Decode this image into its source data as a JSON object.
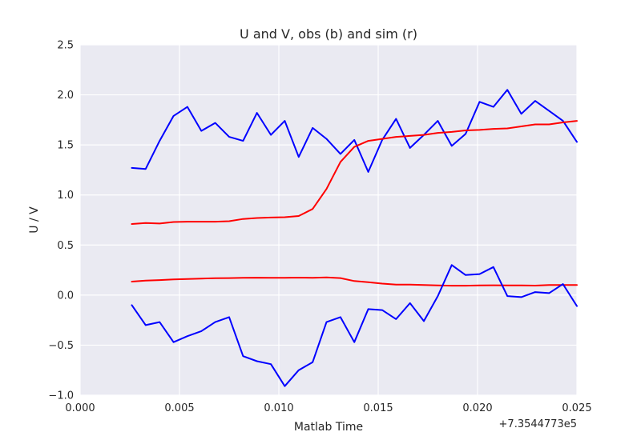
{
  "chart_data": {
    "type": "line",
    "title": "U and V, obs (b) and sim (r)",
    "xlabel": "Matlab Time",
    "ylabel": "U / V",
    "x_offset_label": "+7.3544773e5",
    "xlim": [
      0.0,
      0.025
    ],
    "ylim": [
      -1.0,
      2.5
    ],
    "xticks": [
      0.0,
      0.005,
      0.01,
      0.015,
      0.02,
      0.025
    ],
    "xtick_labels": [
      "0.000",
      "0.005",
      "0.010",
      "0.015",
      "0.020",
      "0.025"
    ],
    "yticks": [
      -1.0,
      -0.5,
      0.0,
      0.5,
      1.0,
      1.5,
      2.0,
      2.5
    ],
    "ytick_labels": [
      "−1.0",
      "−0.5",
      "0.0",
      "0.5",
      "1.0",
      "1.5",
      "2.0",
      "2.5"
    ],
    "grid": true,
    "colors": {
      "background": "#eaeaf2",
      "grid": "#ffffff",
      "obs": "#0000ff",
      "sim": "#ff0000"
    },
    "series": [
      {
        "color": "#0000ff",
        "x": [
          0.0026,
          0.0033,
          0.004,
          0.0047,
          0.0054,
          0.0061,
          0.0068,
          0.0075,
          0.0082,
          0.0089,
          0.0096,
          0.0103,
          0.011,
          0.0117,
          0.0124,
          0.0131,
          0.0138,
          0.0145,
          0.0152,
          0.0159,
          0.0166,
          0.0173,
          0.018,
          0.0187,
          0.0194,
          0.0201,
          0.0208,
          0.0215,
          0.0222,
          0.0229,
          0.0236,
          0.0243,
          0.025
        ],
        "y": [
          1.27,
          1.26,
          1.54,
          1.79,
          1.88,
          1.64,
          1.72,
          1.58,
          1.54,
          1.82,
          1.6,
          1.74,
          1.38,
          1.67,
          1.56,
          1.41,
          1.55,
          1.23,
          1.55,
          1.76,
          1.47,
          1.6,
          1.74,
          1.49,
          1.61,
          1.93,
          1.88,
          2.05,
          1.81,
          1.94,
          1.84,
          1.74,
          1.53
        ]
      },
      {
        "color": "#ff0000",
        "x": [
          0.0026,
          0.0033,
          0.004,
          0.0047,
          0.0054,
          0.0061,
          0.0068,
          0.0075,
          0.0082,
          0.0089,
          0.0096,
          0.0103,
          0.011,
          0.0117,
          0.0124,
          0.0131,
          0.0138,
          0.0145,
          0.0152,
          0.0159,
          0.0166,
          0.0173,
          0.018,
          0.0187,
          0.0194,
          0.0201,
          0.0208,
          0.0215,
          0.0222,
          0.0229,
          0.0236,
          0.0243,
          0.025
        ],
        "y": [
          0.71,
          0.72,
          0.715,
          0.73,
          0.733,
          0.733,
          0.733,
          0.738,
          0.76,
          0.77,
          0.775,
          0.778,
          0.79,
          0.86,
          1.06,
          1.33,
          1.48,
          1.54,
          1.56,
          1.58,
          1.59,
          1.6,
          1.62,
          1.63,
          1.645,
          1.65,
          1.66,
          1.665,
          1.685,
          1.705,
          1.705,
          1.725,
          1.74
        ]
      },
      {
        "color": "#ff0000",
        "x": [
          0.0026,
          0.0033,
          0.004,
          0.0047,
          0.0054,
          0.0061,
          0.0068,
          0.0075,
          0.0082,
          0.0089,
          0.0096,
          0.0103,
          0.011,
          0.0117,
          0.0124,
          0.0131,
          0.0138,
          0.0145,
          0.0152,
          0.0159,
          0.0166,
          0.0173,
          0.018,
          0.0187,
          0.0194,
          0.0201,
          0.0208,
          0.0215,
          0.0222,
          0.0229,
          0.0236,
          0.0243,
          0.025
        ],
        "y": [
          0.135,
          0.145,
          0.15,
          0.157,
          0.16,
          0.165,
          0.168,
          0.17,
          0.172,
          0.174,
          0.172,
          0.172,
          0.175,
          0.173,
          0.176,
          0.17,
          0.14,
          0.128,
          0.115,
          0.105,
          0.105,
          0.1,
          0.096,
          0.094,
          0.094,
          0.097,
          0.098,
          0.097,
          0.096,
          0.095,
          0.1,
          0.1,
          0.1
        ]
      },
      {
        "color": "#0000ff",
        "x": [
          0.0026,
          0.0033,
          0.004,
          0.0047,
          0.0054,
          0.0061,
          0.0068,
          0.0075,
          0.0082,
          0.0089,
          0.0096,
          0.0103,
          0.011,
          0.0117,
          0.0124,
          0.0131,
          0.0138,
          0.0145,
          0.0152,
          0.0159,
          0.0166,
          0.0173,
          0.018,
          0.0187,
          0.0194,
          0.0201,
          0.0208,
          0.0215,
          0.0222,
          0.0229,
          0.0236,
          0.0243,
          0.025
        ],
        "y": [
          -0.1,
          -0.3,
          -0.27,
          -0.47,
          -0.41,
          -0.36,
          -0.27,
          -0.22,
          -0.61,
          -0.66,
          -0.69,
          -0.91,
          -0.75,
          -0.67,
          -0.27,
          -0.22,
          -0.47,
          -0.14,
          -0.15,
          -0.24,
          -0.08,
          -0.26,
          -0.01,
          0.3,
          0.2,
          0.21,
          0.28,
          -0.01,
          -0.02,
          0.03,
          0.02,
          0.11,
          -0.11
        ]
      }
    ]
  }
}
